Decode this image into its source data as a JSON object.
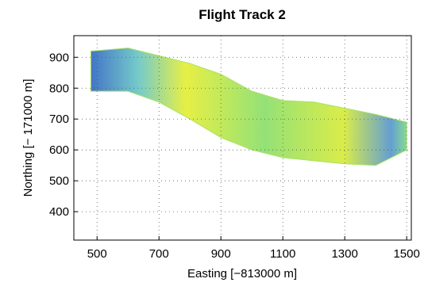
{
  "chart_data": {
    "type": "band",
    "title": "Flight Track 2",
    "xlabel": "Easting [−813000 m]",
    "ylabel": "Northing [− 171000 m]",
    "x": [
      480,
      600,
      700,
      800,
      900,
      1000,
      1100,
      1200,
      1300,
      1400,
      1500
    ],
    "upper": [
      920,
      930,
      905,
      880,
      845,
      790,
      760,
      755,
      735,
      715,
      690
    ],
    "lower": [
      790,
      790,
      755,
      700,
      640,
      600,
      575,
      565,
      555,
      550,
      600
    ],
    "color": "#a6e05a",
    "xlim": [
      425,
      1515
    ],
    "xticks": [
      500,
      700,
      900,
      1100,
      1300,
      1500
    ],
    "ylim": [
      308,
      970
    ],
    "yticks": [
      400,
      500,
      600,
      700,
      800,
      900
    ],
    "grid": true
  }
}
